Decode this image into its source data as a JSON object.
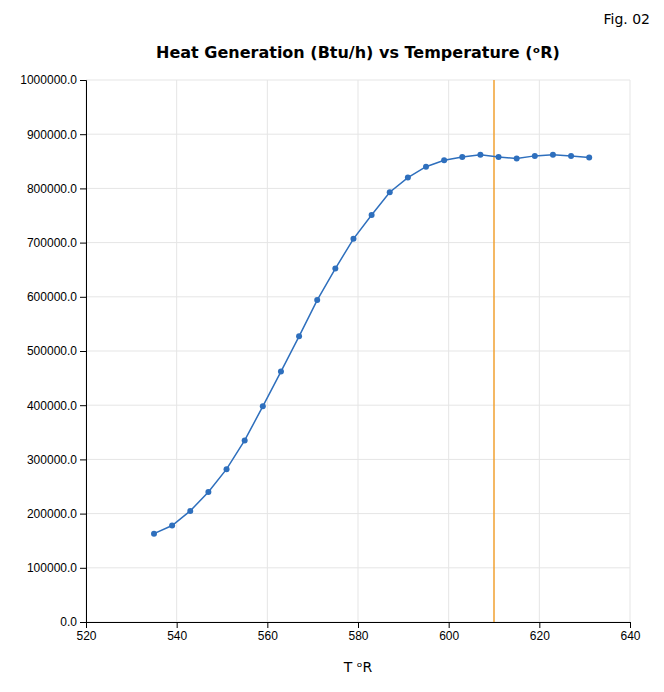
{
  "chart_data": {
    "type": "line",
    "title": "Heat Generation (Btu/h) vs Temperature (ᵒR)",
    "xlabel": "T ᵒR",
    "annotations": [
      {
        "text": "Fig. 02"
      }
    ],
    "x": [
      535,
      539,
      543,
      547,
      551,
      555,
      559,
      563,
      567,
      571,
      575,
      579,
      583,
      587,
      591,
      595,
      599,
      603,
      607,
      611,
      615,
      619,
      623,
      627,
      631
    ],
    "values": [
      163000,
      178000,
      205000,
      240000,
      282000,
      335000,
      398000,
      462000,
      527000,
      594000,
      652000,
      707000,
      751000,
      793000,
      820000,
      840000,
      852000,
      858000,
      862000,
      858000,
      855000,
      860000,
      862000,
      860000,
      857000
    ],
    "color": "#2e6fbd",
    "marker": "circle",
    "vline": {
      "x": 610,
      "color": "#f0a030"
    },
    "xlim": [
      520,
      640
    ],
    "ylim": [
      0,
      1000000
    ],
    "xticks": [
      520,
      540,
      560,
      580,
      600,
      620,
      640
    ],
    "yticks": [
      {
        "value": 0,
        "label": "0.0"
      },
      {
        "value": 100000,
        "label": "100000.0"
      },
      {
        "value": 200000,
        "label": "200000.0"
      },
      {
        "value": 300000,
        "label": "300000.0"
      },
      {
        "value": 400000,
        "label": "400000.0"
      },
      {
        "value": 500000,
        "label": "500000.0"
      },
      {
        "value": 600000,
        "label": "600000.0"
      },
      {
        "value": 700000,
        "label": "700000.0"
      },
      {
        "value": 800000,
        "label": "800000.0"
      },
      {
        "value": 900000,
        "label": "900000.0"
      },
      {
        "value": 1000000,
        "label": "1000000.0"
      }
    ],
    "grid": true
  }
}
